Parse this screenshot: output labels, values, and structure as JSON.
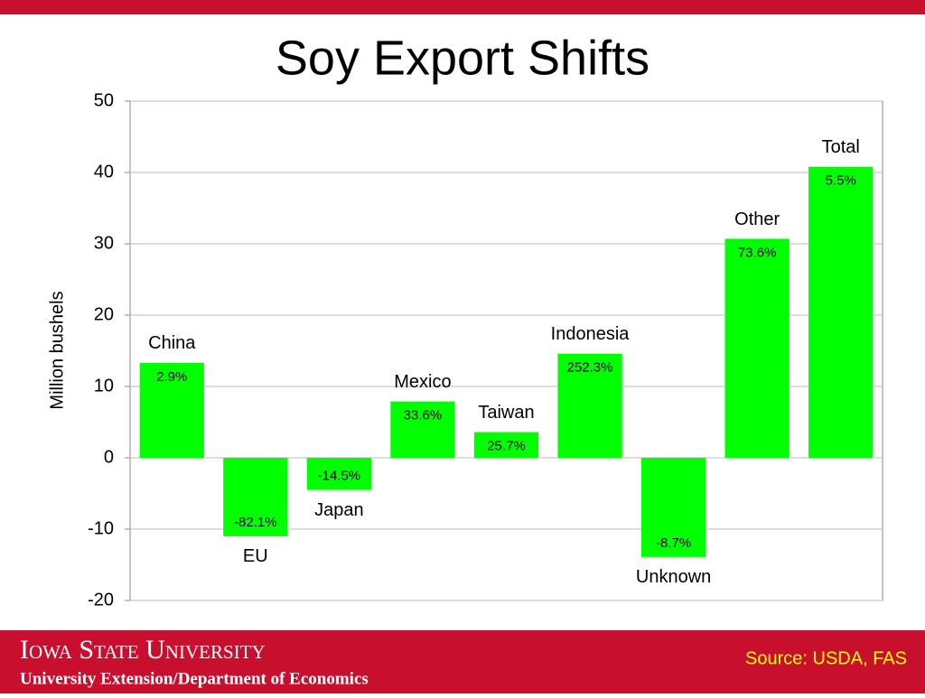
{
  "chart_data": {
    "type": "bar",
    "title": "Soy Export Shifts",
    "y_label": "Million bushels",
    "categories": [
      "China",
      "EU",
      "Japan",
      "Mexico",
      "Taiwan",
      "Indonesia",
      "Unknown",
      "Other",
      "Total"
    ],
    "values": [
      13.3,
      -11,
      -4.5,
      7.9,
      3.6,
      14.6,
      -13.9,
      30.7,
      40.8
    ],
    "percent_changes": [
      "2.9%",
      "-82.1%",
      "-14.5%",
      "33.6%",
      "25.7%",
      "252.3%",
      "-8.7%",
      "73.6%",
      "5.5%"
    ],
    "color": "#00ff00",
    "ylim": [
      -20,
      50
    ],
    "yticks": [
      -20,
      -10,
      0,
      10,
      20,
      30,
      40,
      50
    ],
    "grid": true
  },
  "footer": {
    "university": "Iowa State University",
    "department": "University Extension/Department of Economics",
    "source": "Source: USDA, FAS"
  }
}
